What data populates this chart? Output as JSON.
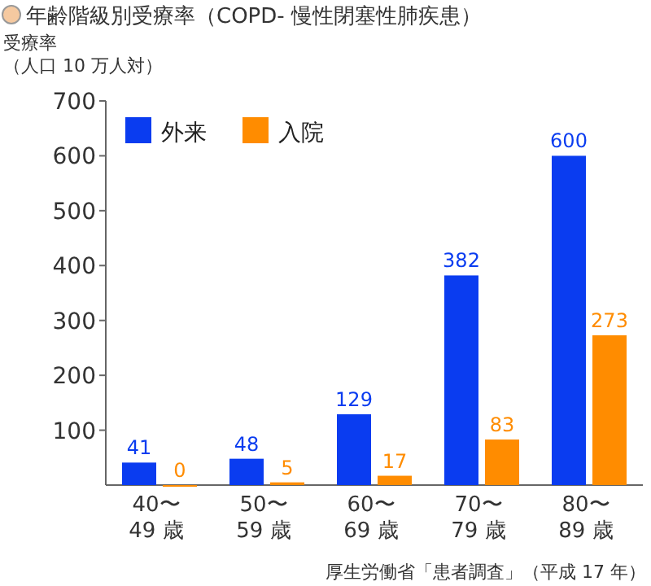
{
  "chart_data": {
    "type": "bar",
    "title": "年齢階級別受療率（COPD- 慢性閉塞性肺疾患）",
    "ylabel": "受療率（人口 10 万人対）",
    "categories": [
      "40〜\n49 歳",
      "50〜\n59 歳",
      "60〜\n69 歳",
      "70〜\n79 歳",
      "80〜\n89 歳"
    ],
    "series": [
      {
        "name": "外来",
        "color": "#0a3cf0",
        "values": [
          41,
          48,
          129,
          382,
          600
        ]
      },
      {
        "name": "入院",
        "color": "#ff8c00",
        "values": [
          0,
          5,
          17,
          83,
          273
        ]
      }
    ],
    "ylim": [
      0,
      700
    ],
    "yticks": [
      100,
      200,
      300,
      400,
      500,
      600,
      700
    ],
    "data_labels": true,
    "legend": "top left",
    "annotations": [
      "厚生労働省「患者調査」（平成 17 年）"
    ]
  }
}
